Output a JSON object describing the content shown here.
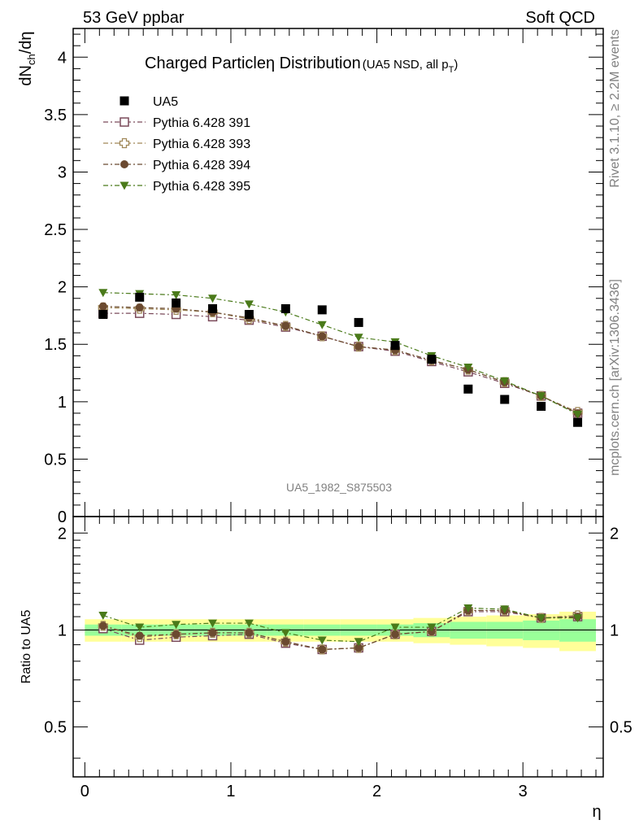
{
  "header": {
    "left": "53 GeV ppbar",
    "right": "Soft QCD"
  },
  "side_labels": {
    "rivet": "Rivet 3.1.10, ≥ 2.2M events",
    "mcplots": "mcplots.cern.ch [arXiv:1306.3436]"
  },
  "watermark": "UA5_1982_S875503",
  "chart_data": {
    "type": "scatter",
    "title": "Charged Particle",
    "title_symbol": "η",
    "title_rest": " Distribution",
    "subtitle_main": "(UA5 NSD, all p",
    "subtitle_sub": "T",
    "subtitle_close": ")",
    "ylabel_main": "dN",
    "ylabel_sub": "ch",
    "ylabel_rest": "/dη",
    "ratio_ylabel": "Ratio to UA5",
    "xlabel": "η",
    "xlim": [
      -0.08,
      3.55
    ],
    "ylim": [
      0,
      4.25
    ],
    "ratio_ylim": [
      0.35,
      2.25
    ],
    "x_ticks": [
      0,
      1,
      2,
      3
    ],
    "x_tick_labels": [
      "0",
      "1",
      "2",
      "3"
    ],
    "y_ticks": [
      0,
      0.5,
      1,
      1.5,
      2,
      2.5,
      3,
      3.5,
      4
    ],
    "y_tick_labels": [
      "0",
      "0.5",
      "1",
      "1.5",
      "2",
      "2.5",
      "3",
      "3.5",
      "4"
    ],
    "ratio_y_ticks": [
      0.5,
      1,
      2
    ],
    "ratio_y_tick_labels": [
      "0.5",
      "1",
      "2"
    ],
    "legend_position": "top-left",
    "x": [
      0.125,
      0.375,
      0.625,
      0.875,
      1.125,
      1.375,
      1.625,
      1.875,
      2.125,
      2.375,
      2.625,
      2.875,
      3.125,
      3.375
    ],
    "bin_edges": [
      0,
      0.25,
      0.5,
      0.75,
      1.0,
      1.25,
      1.5,
      1.75,
      2.0,
      2.25,
      2.5,
      2.75,
      3.0,
      3.25,
      3.5
    ],
    "data": {
      "name": "UA5",
      "values": [
        1.76,
        1.91,
        1.86,
        1.81,
        1.76,
        1.81,
        1.8,
        1.69,
        1.49,
        1.37,
        1.11,
        1.02,
        0.96,
        0.82
      ],
      "band_stat": [
        0.04,
        0.04,
        0.04,
        0.04,
        0.04,
        0.04,
        0.04,
        0.04,
        0.04,
        0.05,
        0.06,
        0.06,
        0.07,
        0.08
      ],
      "band_total": [
        0.08,
        0.08,
        0.08,
        0.08,
        0.08,
        0.08,
        0.08,
        0.08,
        0.08,
        0.09,
        0.1,
        0.11,
        0.12,
        0.14
      ]
    },
    "series": [
      {
        "name": "Pythia 6.428 391",
        "marker": "open-square",
        "color": "#7a4a5a",
        "values": [
          1.77,
          1.77,
          1.76,
          1.74,
          1.71,
          1.65,
          1.57,
          1.48,
          1.44,
          1.35,
          1.26,
          1.16,
          1.05,
          0.9
        ],
        "ratio": [
          1.01,
          0.93,
          0.95,
          0.96,
          0.97,
          0.91,
          0.87,
          0.88,
          0.97,
          0.99,
          1.14,
          1.14,
          1.09,
          1.1
        ]
      },
      {
        "name": "Pythia 6.428 393",
        "marker": "open-cross",
        "color": "#a08858",
        "values": [
          1.82,
          1.81,
          1.8,
          1.78,
          1.72,
          1.66,
          1.57,
          1.48,
          1.45,
          1.36,
          1.28,
          1.17,
          1.05,
          0.91
        ],
        "ratio": [
          1.03,
          0.95,
          0.97,
          0.98,
          0.98,
          0.92,
          0.87,
          0.88,
          0.97,
          0.99,
          1.15,
          1.15,
          1.09,
          1.11
        ]
      },
      {
        "name": "Pythia 6.428 394",
        "marker": "filled-circle",
        "color": "#6b4a30",
        "values": [
          1.83,
          1.82,
          1.81,
          1.78,
          1.73,
          1.66,
          1.57,
          1.48,
          1.45,
          1.36,
          1.28,
          1.17,
          1.05,
          0.9
        ],
        "ratio": [
          1.03,
          0.96,
          0.97,
          0.98,
          0.98,
          0.92,
          0.87,
          0.88,
          0.97,
          0.99,
          1.15,
          1.15,
          1.09,
          1.1
        ]
      },
      {
        "name": "Pythia 6.428 395",
        "marker": "filled-triangle-down",
        "color": "#4a7a1a",
        "values": [
          1.95,
          1.94,
          1.93,
          1.9,
          1.85,
          1.78,
          1.67,
          1.56,
          1.52,
          1.4,
          1.3,
          1.18,
          1.05,
          0.89
        ],
        "ratio": [
          1.11,
          1.02,
          1.04,
          1.05,
          1.05,
          0.98,
          0.93,
          0.92,
          1.02,
          1.02,
          1.17,
          1.16,
          1.09,
          1.09
        ]
      }
    ]
  }
}
